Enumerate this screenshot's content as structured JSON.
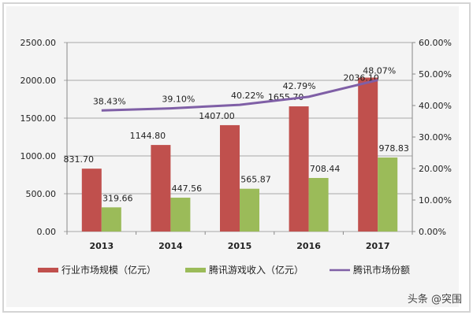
{
  "chart_data": {
    "type": "bar+line",
    "categories": [
      "2013",
      "2014",
      "2015",
      "2016",
      "2017"
    ],
    "series": [
      {
        "name": "行业市场规模（亿元）",
        "type": "bar",
        "axis": "left",
        "color": "#c0504d",
        "values": [
          831.7,
          1144.8,
          1407.0,
          1655.7,
          2036.1
        ],
        "labels": [
          "831.70",
          "1144.80",
          "1407.00",
          "1655.70",
          "2036.10"
        ]
      },
      {
        "name": "腾讯游戏收入（亿元）",
        "type": "bar",
        "axis": "left",
        "color": "#9bbb59",
        "values": [
          319.66,
          447.56,
          565.87,
          708.44,
          978.83
        ],
        "labels": [
          "319.66",
          "447.56",
          "565.87",
          "708.44",
          "978.83"
        ]
      },
      {
        "name": "腾讯市场份额",
        "type": "line",
        "axis": "right",
        "color": "#7f5fa6",
        "values": [
          38.43,
          39.1,
          40.22,
          42.79,
          48.07
        ],
        "labels": [
          "38.43%",
          "39.10%",
          "40.22%",
          "42.79%",
          "48.07%"
        ]
      }
    ],
    "left_axis": {
      "ylim": [
        0,
        2500
      ],
      "ticks": [
        "0.00",
        "500.00",
        "1000.00",
        "1500.00",
        "2000.00",
        "2500.00"
      ]
    },
    "right_axis": {
      "ylim": [
        0,
        60
      ],
      "ticks": [
        "0.00%",
        "10.00%",
        "20.00%",
        "30.00%",
        "40.00%",
        "50.00%",
        "60.00%"
      ]
    },
    "grid": true,
    "legend": "bottom"
  },
  "watermark": "头条 @突围"
}
